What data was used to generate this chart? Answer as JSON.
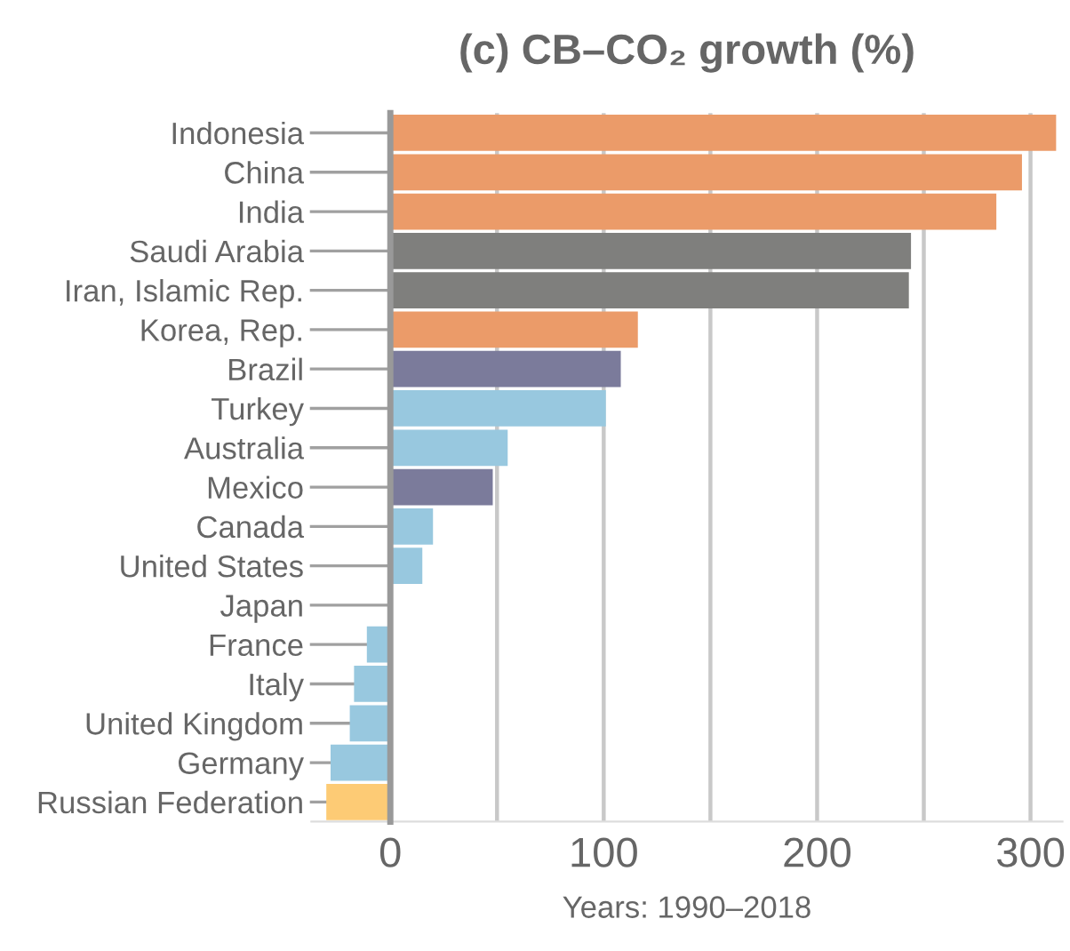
{
  "chart_data": {
    "type": "bar",
    "orientation": "horizontal",
    "title": "(c) CB–CO₂ growth (%)",
    "xlabel": "Years: 1990–2018",
    "categories": [
      "Indonesia",
      "China",
      "India",
      "Saudi Arabia",
      "Iran, Islamic Rep.",
      "Korea, Rep.",
      "Brazil",
      "Turkey",
      "Australia",
      "Mexico",
      "Canada",
      "United States",
      "Japan",
      "France",
      "Italy",
      "United Kingdom",
      "Germany",
      "Russian Federation"
    ],
    "values": [
      312,
      296,
      284,
      244,
      243,
      116,
      108,
      101,
      55,
      48,
      20,
      15,
      0,
      -11,
      -17,
      -19,
      -28,
      -30
    ],
    "colors": [
      "#eb9b69",
      "#eb9b69",
      "#eb9b69",
      "#7f7f7d",
      "#7f7f7d",
      "#eb9b69",
      "#7b7b9b",
      "#98c8df",
      "#98c8df",
      "#7b7b9b",
      "#98c8df",
      "#98c8df",
      "#98c8df",
      "#98c8df",
      "#98c8df",
      "#98c8df",
      "#98c8df",
      "#fdcb75"
    ],
    "xlim": [
      -37,
      315
    ],
    "xticks": [
      0,
      {
        "value": 50,
        "label": null
      },
      100,
      {
        "value": 150,
        "label": null
      },
      200,
      {
        "value": 250,
        "label": null
      },
      300
    ],
    "grid": "x"
  }
}
